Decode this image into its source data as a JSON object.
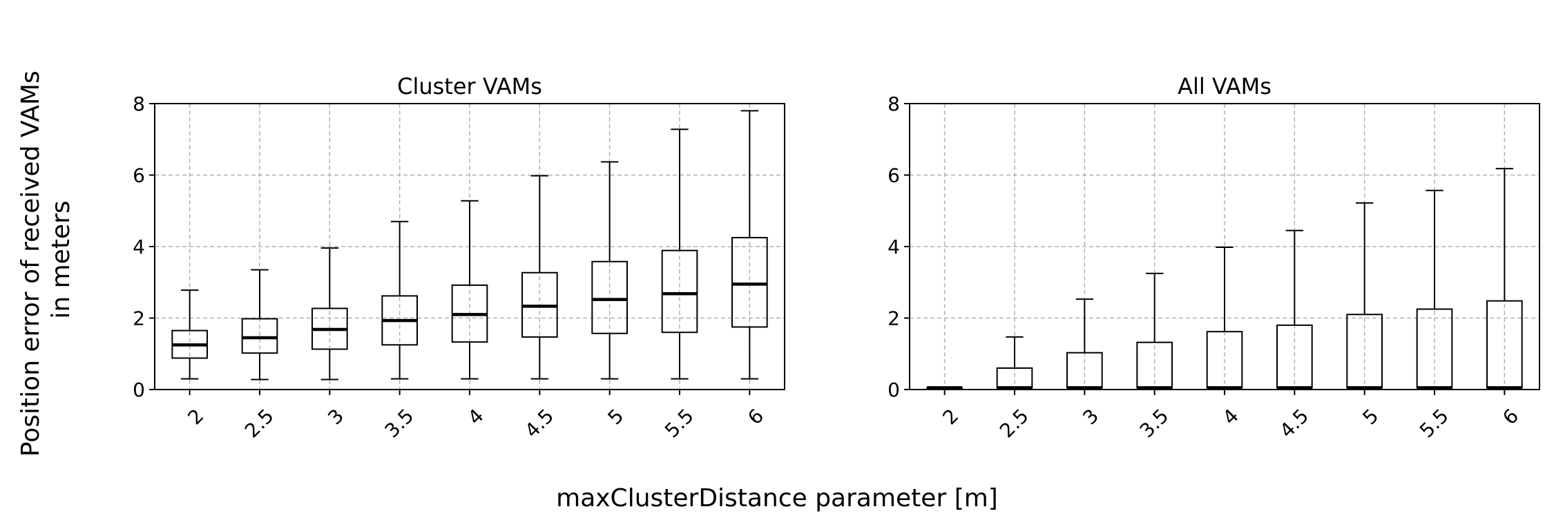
{
  "figure": {
    "ylabel_lines": [
      "Position error of received VAMs",
      "in meters"
    ],
    "xlabel": "maxClusterDistance parameter [m]"
  },
  "chart_data": [
    {
      "type": "boxplot",
      "title": "Cluster VAMs",
      "categories": [
        "2",
        "2.5",
        "3",
        "3.5",
        "4",
        "4.5",
        "5",
        "5.5",
        "6"
      ],
      "ylim": [
        0,
        8
      ],
      "yticks": [
        "0",
        "2",
        "4",
        "6",
        "8"
      ],
      "grid": true,
      "boxes": [
        {
          "whisker_low": 0.3,
          "q1": 0.88,
          "median": 1.25,
          "q3": 1.65,
          "whisker_high": 2.78
        },
        {
          "whisker_low": 0.28,
          "q1": 1.02,
          "median": 1.45,
          "q3": 1.98,
          "whisker_high": 3.35
        },
        {
          "whisker_low": 0.28,
          "q1": 1.13,
          "median": 1.68,
          "q3": 2.27,
          "whisker_high": 3.96
        },
        {
          "whisker_low": 0.3,
          "q1": 1.25,
          "median": 1.93,
          "q3": 2.62,
          "whisker_high": 4.7
        },
        {
          "whisker_low": 0.3,
          "q1": 1.33,
          "median": 2.1,
          "q3": 2.92,
          "whisker_high": 5.28
        },
        {
          "whisker_low": 0.3,
          "q1": 1.47,
          "median": 2.33,
          "q3": 3.27,
          "whisker_high": 5.98
        },
        {
          "whisker_low": 0.3,
          "q1": 1.57,
          "median": 2.52,
          "q3": 3.58,
          "whisker_high": 6.37
        },
        {
          "whisker_low": 0.3,
          "q1": 1.6,
          "median": 2.68,
          "q3": 3.89,
          "whisker_high": 7.28
        },
        {
          "whisker_low": 0.3,
          "q1": 1.75,
          "median": 2.95,
          "q3": 4.25,
          "whisker_high": 7.8
        }
      ]
    },
    {
      "type": "boxplot",
      "title": "All VAMs",
      "categories": [
        "2",
        "2.5",
        "3",
        "3.5",
        "4",
        "4.5",
        "5",
        "5.5",
        "6"
      ],
      "ylim": [
        0,
        8
      ],
      "yticks": [
        "0",
        "2",
        "4",
        "6",
        "8"
      ],
      "grid": true,
      "boxes": [
        {
          "whisker_low": 0.05,
          "q1": 0.05,
          "median": 0.05,
          "q3": 0.05,
          "whisker_high": 0.05
        },
        {
          "whisker_low": 0.05,
          "q1": 0.05,
          "median": 0.05,
          "q3": 0.6,
          "whisker_high": 1.47
        },
        {
          "whisker_low": 0.05,
          "q1": 0.05,
          "median": 0.05,
          "q3": 1.03,
          "whisker_high": 2.53
        },
        {
          "whisker_low": 0.05,
          "q1": 0.05,
          "median": 0.05,
          "q3": 1.32,
          "whisker_high": 3.25
        },
        {
          "whisker_low": 0.05,
          "q1": 0.05,
          "median": 0.05,
          "q3": 1.62,
          "whisker_high": 3.98
        },
        {
          "whisker_low": 0.05,
          "q1": 0.05,
          "median": 0.05,
          "q3": 1.8,
          "whisker_high": 4.45
        },
        {
          "whisker_low": 0.05,
          "q1": 0.05,
          "median": 0.05,
          "q3": 2.1,
          "whisker_high": 5.22
        },
        {
          "whisker_low": 0.05,
          "q1": 0.05,
          "median": 0.05,
          "q3": 2.25,
          "whisker_high": 5.57
        },
        {
          "whisker_low": 0.05,
          "q1": 0.05,
          "median": 0.05,
          "q3": 2.48,
          "whisker_high": 6.18
        }
      ]
    }
  ]
}
